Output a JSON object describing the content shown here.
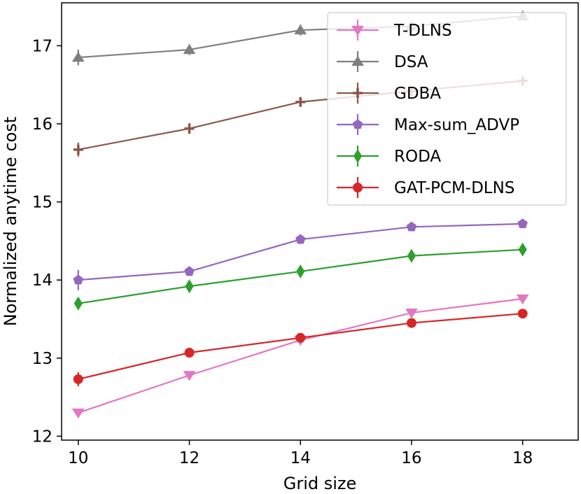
{
  "chart_data": {
    "type": "line",
    "title": "",
    "xlabel": "Grid size",
    "ylabel": "Normalized anytime cost",
    "x": [
      10,
      12,
      14,
      16,
      18
    ],
    "xlim": [
      9.7,
      19.0
    ],
    "ylim": [
      11.95,
      17.55
    ],
    "xticks": [
      10,
      12,
      14,
      16,
      18
    ],
    "yticks": [
      12,
      13,
      14,
      15,
      16,
      17
    ],
    "legend": "top-right",
    "series": [
      {
        "name": "T-DLNS",
        "color": "#e377c2",
        "marker": "triangle-down",
        "values": [
          12.3,
          12.78,
          13.23,
          13.58,
          13.76
        ],
        "errors": [
          0.05,
          0.04,
          0.04,
          0.04,
          0.03
        ]
      },
      {
        "name": "DSA",
        "color": "#7f7f7f",
        "marker": "triangle-up",
        "values": [
          16.85,
          16.95,
          17.2,
          17.25,
          17.38
        ],
        "errors": [
          0.1,
          0.07,
          0.07,
          0.05,
          0.04
        ]
      },
      {
        "name": "GDBA",
        "color": "#8c564b",
        "marker": "plus",
        "values": [
          15.67,
          15.94,
          16.28,
          16.42,
          16.55
        ],
        "errors": [
          0.09,
          0.07,
          0.06,
          0.05,
          0.04
        ]
      },
      {
        "name": "Max-sum_ADVP",
        "color": "#9467bd",
        "marker": "pentagon",
        "values": [
          14.0,
          14.11,
          14.52,
          14.68,
          14.72
        ],
        "errors": [
          0.13,
          0.06,
          0.06,
          0.04,
          0.04
        ]
      },
      {
        "name": "RODA",
        "color": "#2ca02c",
        "marker": "diamond",
        "values": [
          13.7,
          13.92,
          14.11,
          14.31,
          14.39
        ],
        "errors": [
          0.07,
          0.05,
          0.05,
          0.05,
          0.04
        ]
      },
      {
        "name": "GAT-PCM-DLNS",
        "color": "#d62728",
        "marker": "circle",
        "values": [
          12.73,
          13.07,
          13.26,
          13.45,
          13.57
        ],
        "errors": [
          0.09,
          0.05,
          0.04,
          0.04,
          0.03
        ]
      }
    ]
  }
}
